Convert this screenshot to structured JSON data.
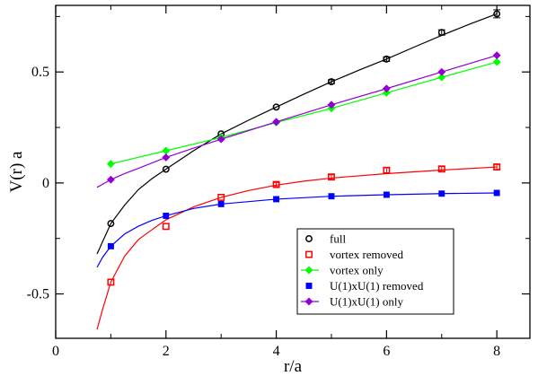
{
  "chart_data": {
    "type": "scatter",
    "title": "",
    "xlabel": "r/a",
    "ylabel": "V(r) a",
    "xlim": [
      0,
      8.6
    ],
    "ylim": [
      -0.7,
      0.8
    ],
    "xticks": [
      0,
      2,
      4,
      6,
      8
    ],
    "xtick_labels": [
      "0",
      "2",
      "4",
      "6",
      "8"
    ],
    "yticks": [
      -0.5,
      0,
      0.5
    ],
    "ytick_labels": [
      "-0.5",
      "0",
      "0.5"
    ],
    "grid": false,
    "legend_position": "bottom-right",
    "series": [
      {
        "name": "full",
        "marker": "open-circle",
        "color": "#000000",
        "x": [
          1,
          2,
          3,
          4,
          5,
          6,
          7,
          8
        ],
        "y": [
          -0.183,
          0.062,
          0.221,
          0.342,
          0.456,
          0.558,
          0.678,
          0.762
        ],
        "err": [
          0.008,
          0.007,
          0.008,
          0.008,
          0.009,
          0.01,
          0.012,
          0.018
        ],
        "fit": {
          "x": [
            0.75,
            1,
            1.25,
            1.5,
            1.75,
            2,
            2.5,
            3,
            3.5,
            4,
            4.5,
            5,
            5.5,
            6,
            6.5,
            7,
            7.5,
            8
          ],
          "y": [
            -0.32,
            -0.183,
            -0.1,
            -0.03,
            0.02,
            0.062,
            0.145,
            0.221,
            0.283,
            0.342,
            0.4,
            0.456,
            0.508,
            0.558,
            0.612,
            0.665,
            0.715,
            0.762
          ]
        }
      },
      {
        "name": "vortex removed",
        "marker": "open-square",
        "color": "#ff0000",
        "x": [
          1,
          2,
          3,
          4,
          5,
          6,
          7,
          8
        ],
        "y": [
          -0.447,
          -0.196,
          -0.065,
          -0.007,
          0.027,
          0.057,
          0.063,
          0.072
        ],
        "err": [
          0.008,
          0.008,
          0.008,
          0.009,
          0.01,
          0.011,
          0.011,
          0.011
        ],
        "fit": {
          "x": [
            0.75,
            0.85,
            1,
            1.25,
            1.5,
            1.75,
            2,
            2.5,
            3,
            3.5,
            4,
            4.5,
            5,
            6,
            7,
            8
          ],
          "y": [
            -0.66,
            -0.57,
            -0.447,
            -0.33,
            -0.255,
            -0.21,
            -0.166,
            -0.108,
            -0.065,
            -0.034,
            -0.01,
            0.008,
            0.022,
            0.042,
            0.058,
            0.072
          ]
        }
      },
      {
        "name": "vortex only",
        "marker": "filled-diamond",
        "color": "#00ff00",
        "x": [
          1,
          2,
          3,
          4,
          5,
          6,
          7,
          8
        ],
        "y": [
          0.086,
          0.145,
          0.205,
          0.272,
          0.336,
          0.406,
          0.476,
          0.545
        ],
        "err": [
          0.004,
          0.004,
          0.004,
          0.004,
          0.004,
          0.004,
          0.004,
          0.004
        ],
        "fit": {
          "x": [
            1,
            2,
            3,
            4,
            5,
            6,
            7,
            8
          ],
          "y": [
            0.086,
            0.145,
            0.205,
            0.272,
            0.336,
            0.406,
            0.476,
            0.545
          ]
        }
      },
      {
        "name": "U(1)xU(1) removed",
        "marker": "filled-square",
        "color": "#0000ff",
        "x": [
          1,
          2,
          3,
          4,
          5,
          6,
          7,
          8
        ],
        "y": [
          -0.285,
          -0.148,
          -0.095,
          -0.073,
          -0.06,
          -0.053,
          -0.048,
          -0.045
        ],
        "err": [
          0.004,
          0.004,
          0.004,
          0.004,
          0.004,
          0.004,
          0.004,
          0.004
        ],
        "fit": {
          "x": [
            0.75,
            0.85,
            1,
            1.25,
            1.5,
            1.75,
            2,
            2.5,
            3,
            4,
            5,
            6,
            7,
            8
          ],
          "y": [
            -0.38,
            -0.335,
            -0.285,
            -0.23,
            -0.195,
            -0.168,
            -0.148,
            -0.115,
            -0.095,
            -0.073,
            -0.06,
            -0.053,
            -0.048,
            -0.045
          ]
        }
      },
      {
        "name": "U(1)xU(1) only",
        "marker": "filled-diamond",
        "color": "#9400d3",
        "x": [
          1,
          2,
          3,
          4,
          5,
          6,
          7,
          8
        ],
        "y": [
          0.015,
          0.115,
          0.197,
          0.275,
          0.352,
          0.425,
          0.5,
          0.575
        ],
        "err": [
          0.004,
          0.004,
          0.004,
          0.004,
          0.004,
          0.004,
          0.004,
          0.004
        ],
        "fit": {
          "x": [
            0.75,
            1,
            1.25,
            1.5,
            2,
            2.5,
            3,
            3.5,
            4,
            5,
            6,
            7,
            8
          ],
          "y": [
            -0.02,
            0.015,
            0.042,
            0.066,
            0.115,
            0.157,
            0.197,
            0.236,
            0.275,
            0.352,
            0.425,
            0.5,
            0.575
          ]
        }
      }
    ]
  }
}
